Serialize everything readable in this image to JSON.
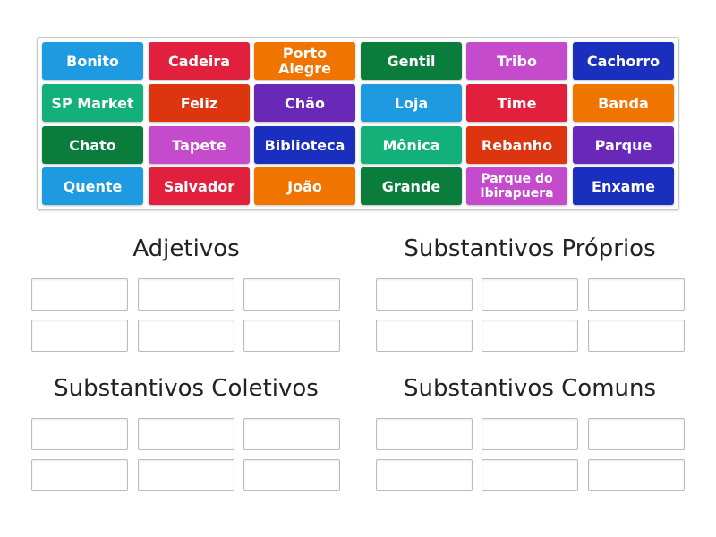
{
  "colors": {
    "blue": "#1e9be0",
    "red": "#e0203c",
    "orange": "#f07400",
    "green": "#0a7d3c",
    "pink": "#c54bcd",
    "navy": "#1a2fbd",
    "teal": "#14b07a",
    "redorange": "#dc3510",
    "purple": "#6a28b8"
  },
  "tiles": [
    {
      "label": "Bonito",
      "color": "blue"
    },
    {
      "label": "Cadeira",
      "color": "red"
    },
    {
      "label": "Porto Alegre",
      "color": "orange"
    },
    {
      "label": "Gentil",
      "color": "green"
    },
    {
      "label": "Tribo",
      "color": "pink"
    },
    {
      "label": "Cachorro",
      "color": "navy"
    },
    {
      "label": "SP Market",
      "color": "teal"
    },
    {
      "label": "Feliz",
      "color": "redorange"
    },
    {
      "label": "Chão",
      "color": "purple"
    },
    {
      "label": "Loja",
      "color": "blue"
    },
    {
      "label": "Time",
      "color": "red"
    },
    {
      "label": "Banda",
      "color": "orange"
    },
    {
      "label": "Chato",
      "color": "green"
    },
    {
      "label": "Tapete",
      "color": "pink"
    },
    {
      "label": "Biblioteca",
      "color": "navy"
    },
    {
      "label": "Mônica",
      "color": "teal"
    },
    {
      "label": "Rebanho",
      "color": "redorange"
    },
    {
      "label": "Parque",
      "color": "purple"
    },
    {
      "label": "Quente",
      "color": "blue"
    },
    {
      "label": "Salvador",
      "color": "red"
    },
    {
      "label": "João",
      "color": "orange"
    },
    {
      "label": "Grande",
      "color": "green"
    },
    {
      "label": "Parque do Ibirapuera",
      "color": "pink"
    },
    {
      "label": "Enxame",
      "color": "navy"
    }
  ],
  "groups": [
    {
      "title": "Adjetivos"
    },
    {
      "title": "Substantivos Próprios"
    },
    {
      "title": "Substantivos Coletivos"
    },
    {
      "title": "Substantivos Comuns"
    }
  ]
}
